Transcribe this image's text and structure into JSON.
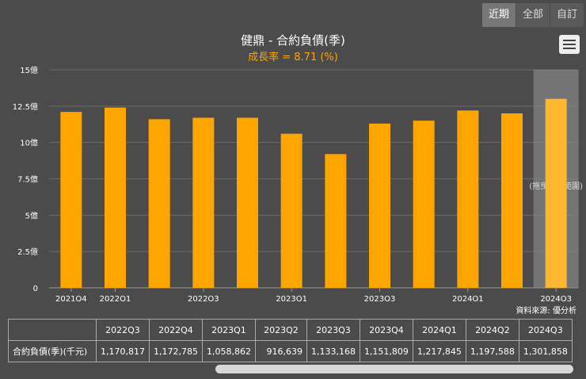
{
  "tabs": [
    "近期",
    "全部",
    "自訂"
  ],
  "active_tab": 0,
  "toolbar": {
    "menu_icon": "hamburger-menu-icon"
  },
  "colors": {
    "bar": "#ffa500",
    "bar_highlight": "#ffb732",
    "background": "#4b4b4b",
    "grid": "#6a6a6a",
    "band": "#8a8a8a"
  },
  "chart_data": {
    "type": "bar",
    "title": "健鼎 - 合約負債(季)",
    "subtitle": "成長率 = 8.71 (%)",
    "categories": [
      "2021Q4",
      "2022Q1",
      "2022Q2",
      "2022Q3",
      "2022Q4",
      "2023Q1",
      "2023Q2",
      "2023Q3",
      "2023Q4",
      "2024Q1",
      "2024Q2",
      "2024Q3"
    ],
    "values": [
      12.1,
      12.4,
      11.6,
      11.7,
      11.7,
      10.6,
      9.2,
      11.3,
      11.5,
      12.2,
      12.0,
      13.0
    ],
    "x_tick_labels": [
      "2021Q4",
      "2022Q1",
      "2022Q3",
      "2023Q1",
      "2023Q3",
      "2024Q1",
      "2024Q3"
    ],
    "y_ticks": [
      "0",
      "2.5億",
      "5億",
      "7.5億",
      "10億",
      "12.5億",
      "15億"
    ],
    "ylim": [
      0,
      15
    ],
    "y_unit": "億",
    "highlight_index": 11,
    "band_label": "(拖曳重選範圍)"
  },
  "source_text": "資料來源: 優分析",
  "table": {
    "columns": [
      "2022Q3",
      "2022Q4",
      "2023Q1",
      "2023Q2",
      "2023Q3",
      "2023Q4",
      "2024Q1",
      "2024Q2",
      "2024Q3"
    ],
    "row_label": "合約負債(季)(千元)",
    "values": [
      "1,170,817",
      "1,172,785",
      "1,058,862",
      "916,639",
      "1,133,168",
      "1,151,809",
      "1,217,845",
      "1,197,588",
      "1,301,858"
    ]
  }
}
